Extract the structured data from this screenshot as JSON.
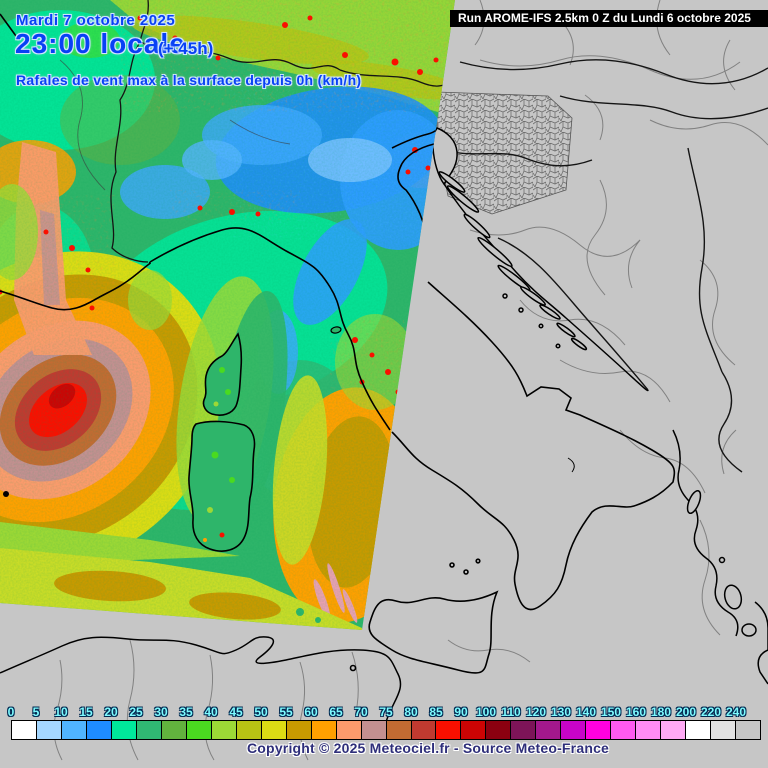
{
  "header": {
    "date": "Mardi 7 octobre 2025",
    "time_local": "23:00 locale",
    "lead_time": "(+ 45h)",
    "parameter": "Rafales de vent max à la surface depuis 0h (km/h)",
    "run": "Run AROME-IFS 2.5km 0 Z du Lundi 6 octobre 2025"
  },
  "footer": {
    "copyright": "Copyright © 2025 Meteociel.fr - Source Meteo-France"
  },
  "colorbar": {
    "unit": "km/h",
    "ticks": [
      "0",
      "5",
      "10",
      "15",
      "20",
      "25",
      "30",
      "35",
      "40",
      "45",
      "50",
      "55",
      "60",
      "65",
      "70",
      "75",
      "80",
      "85",
      "90",
      "100",
      "110",
      "120",
      "130",
      "140",
      "150",
      "160",
      "180",
      "200",
      "220",
      "240"
    ],
    "colors": [
      "#FFFFFF",
      "#A5D7FF",
      "#50B4FF",
      "#1E8CFF",
      "#00E89B",
      "#30B873",
      "#62B23E",
      "#4ADA20",
      "#9CD836",
      "#B8C414",
      "#DCDC14",
      "#C89A00",
      "#FFA000",
      "#FC9B6C",
      "#C49090",
      "#C26B32",
      "#C03A30",
      "#FA0F00",
      "#CC0404",
      "#8B0010",
      "#7D1458",
      "#A3188C",
      "#C804C8",
      "#FF00E0",
      "#FF5AF0",
      "#FF8CF5",
      "#FFAAF5",
      "#FFFFFF",
      "#E3E3E3",
      "#C6C6C6"
    ]
  },
  "theme": {
    "title_color": "#0841F5",
    "title_glow": "#CFE4FF",
    "runbar_bg": "#000000",
    "runbar_text": "#FFFFFF",
    "tick_color": "#7DFBFF",
    "copyright_color": "#2E2E7A",
    "map_base": "#C6C6C6"
  }
}
